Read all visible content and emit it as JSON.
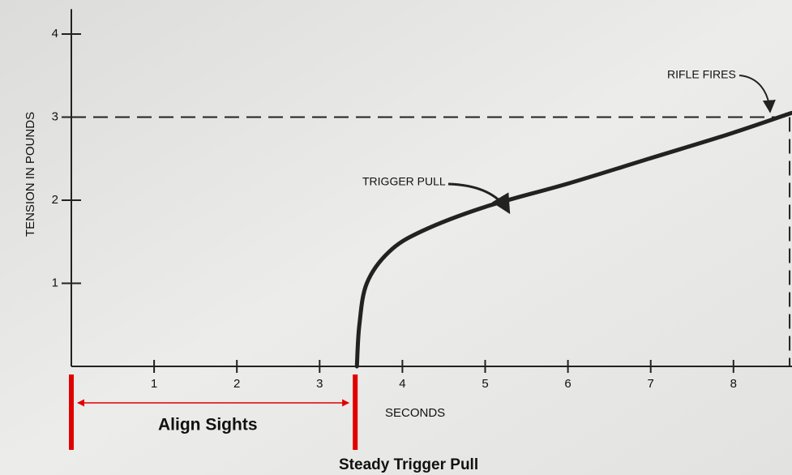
{
  "chart_data": {
    "type": "line",
    "y_label": "TENSION IN POUNDS",
    "x_label": "SECONDS",
    "x": [
      3.45,
      3.48,
      3.57,
      3.84,
      4.24,
      5.0,
      6.0,
      6.98,
      7.96,
      8.7
    ],
    "series": [
      {
        "name": "TRIGGER PULL",
        "color": "#222222",
        "values": [
          0,
          0.5,
          1.0,
          1.38,
          1.63,
          1.92,
          2.2,
          2.5,
          2.8,
          3.05
        ]
      }
    ],
    "xlim": [
      0,
      8.7
    ],
    "ylim": [
      0,
      4.3
    ],
    "xticks": [
      1,
      2,
      3,
      4,
      5,
      6,
      7,
      8
    ],
    "yticks": [
      1,
      2,
      3,
      4
    ],
    "rifle_fires": {
      "label": "RIFLE FIRES",
      "x": 8.6,
      "y": 3
    },
    "red_markers": [
      0,
      3.43
    ],
    "marker_color": "#e00000",
    "align_sights": "Align Sights",
    "steady_trigger_pull": "Steady Trigger Pull"
  }
}
